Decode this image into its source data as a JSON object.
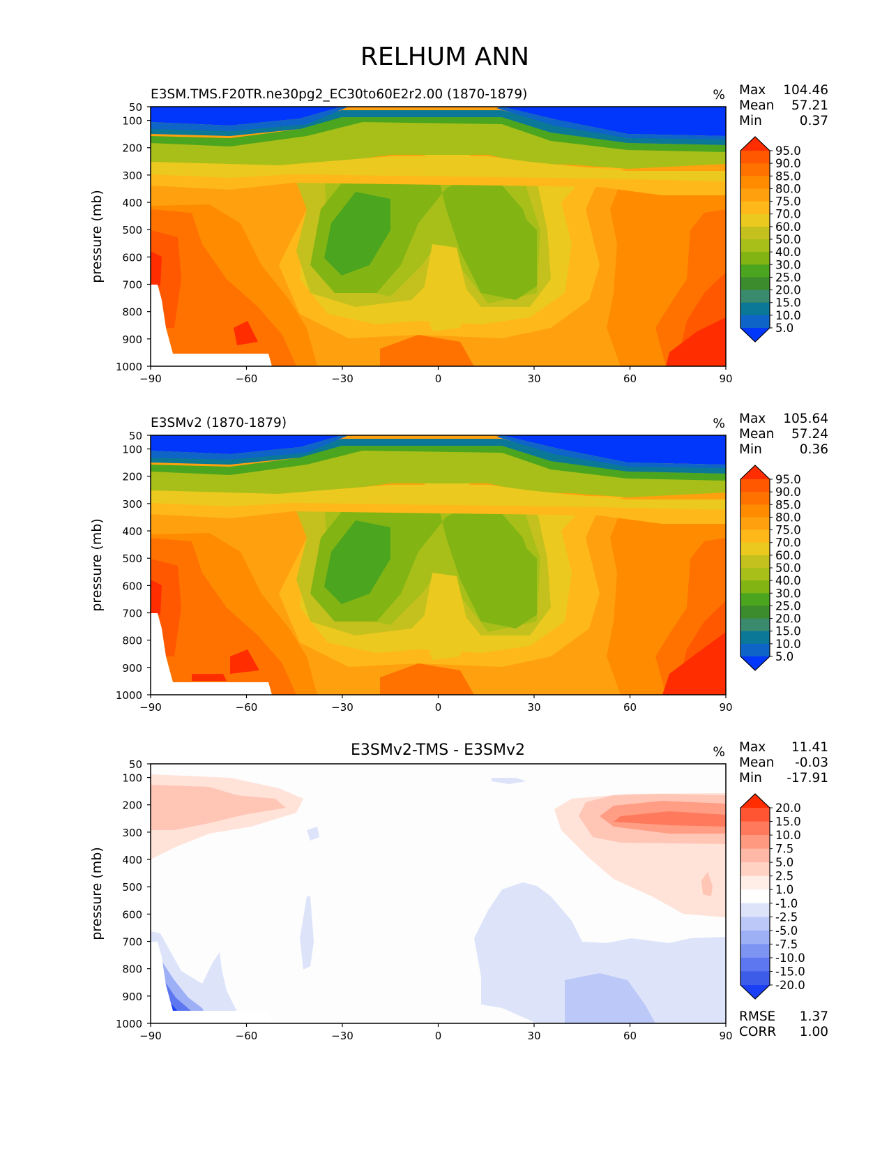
{
  "figure_title": "RELHUM ANN",
  "chart_data": [
    {
      "type": "contour",
      "title": "E3SM.TMS.F20TR.ne30pg2_EC30to60E2r2.00 (1870-1879)",
      "units": "%",
      "xlabel": "",
      "ylabel": "pressure (mb)",
      "xlim": [
        -90,
        90
      ],
      "ylim": [
        1000,
        50
      ],
      "x_ticks": [
        "−90",
        "−60",
        "−30",
        "0",
        "30",
        "60",
        "90"
      ],
      "y_ticks": [
        "50",
        "100",
        "200",
        "300",
        "400",
        "500",
        "600",
        "700",
        "800",
        "900",
        "1000"
      ],
      "stats": [
        {
          "label": "Max",
          "value": "104.46"
        },
        {
          "label": "Mean",
          "value": "57.21"
        },
        {
          "label": "Min",
          "value": "0.37"
        }
      ],
      "colorbar": {
        "levels": [
          "95.0",
          "90.0",
          "85.0",
          "80.0",
          "75.0",
          "70.0",
          "60.0",
          "50.0",
          "40.0",
          "30.0",
          "25.0",
          "20.0",
          "15.0",
          "10.0",
          "5.0"
        ],
        "colors": [
          "#ff2d00",
          "#ff5800",
          "#ff7200",
          "#ff8c00",
          "#ffa10f",
          "#ffb819",
          "#ebc91e",
          "#c4c11e",
          "#a8bf19",
          "#82b414",
          "#4ca51e",
          "#3c8c2d",
          "#3a8a6e",
          "#0a7896",
          "#0f64c8",
          "#0037fa"
        ]
      },
      "extra_stats": []
    },
    {
      "type": "contour",
      "title": "E3SMv2 (1870-1879)",
      "units": "%",
      "xlabel": "",
      "ylabel": "pressure (mb)",
      "xlim": [
        -90,
        90
      ],
      "ylim": [
        1000,
        50
      ],
      "x_ticks": [
        "−90",
        "−60",
        "−30",
        "0",
        "30",
        "60",
        "90"
      ],
      "y_ticks": [
        "50",
        "100",
        "200",
        "300",
        "400",
        "500",
        "600",
        "700",
        "800",
        "900",
        "1000"
      ],
      "stats": [
        {
          "label": "Max",
          "value": "105.64"
        },
        {
          "label": "Mean",
          "value": "57.24"
        },
        {
          "label": "Min",
          "value": "0.36"
        }
      ],
      "colorbar": {
        "levels": [
          "95.0",
          "90.0",
          "85.0",
          "80.0",
          "75.0",
          "70.0",
          "60.0",
          "50.0",
          "40.0",
          "30.0",
          "25.0",
          "20.0",
          "15.0",
          "10.0",
          "5.0"
        ],
        "colors": [
          "#ff2d00",
          "#ff5800",
          "#ff7200",
          "#ff8c00",
          "#ffa10f",
          "#ffb819",
          "#ebc91e",
          "#c4c11e",
          "#a8bf19",
          "#82b414",
          "#4ca51e",
          "#3c8c2d",
          "#3a8a6e",
          "#0a7896",
          "#0f64c8",
          "#0037fa"
        ]
      },
      "extra_stats": []
    },
    {
      "type": "contour",
      "title": "E3SMv2-TMS - E3SMv2",
      "units": "%",
      "xlabel": "",
      "ylabel": "pressure (mb)",
      "xlim": [
        -90,
        90
      ],
      "ylim": [
        1000,
        50
      ],
      "x_ticks": [
        "−90",
        "−60",
        "−30",
        "0",
        "30",
        "60",
        "90"
      ],
      "y_ticks": [
        "50",
        "100",
        "200",
        "300",
        "400",
        "500",
        "600",
        "700",
        "800",
        "900",
        "1000"
      ],
      "stats": [
        {
          "label": "Max",
          "value": "11.41"
        },
        {
          "label": "Mean",
          "value": "-0.03"
        },
        {
          "label": "Min",
          "value": "-17.91"
        }
      ],
      "colorbar": {
        "levels": [
          "20.0",
          "15.0",
          "10.0",
          "7.5",
          "5.0",
          "2.5",
          "1.0",
          "-1.0",
          "-2.5",
          "-5.0",
          "-7.5",
          "-10.0",
          "-15.0",
          "-20.0"
        ],
        "colors": [
          "#ff2d00",
          "#ff5533",
          "#ff7a5c",
          "#ff9980",
          "#ffb8a6",
          "#ffd2c4",
          "#ffeee8",
          "#ffffff",
          "#dde4fa",
          "#bcc8f8",
          "#9eb0f5",
          "#7e94f2",
          "#5c77ef",
          "#3d5ce8",
          "#1a3ff5"
        ]
      },
      "extra_stats": [
        {
          "label": "RMSE",
          "value": "1.37"
        },
        {
          "label": "CORR",
          "value": "1.00"
        }
      ]
    }
  ]
}
